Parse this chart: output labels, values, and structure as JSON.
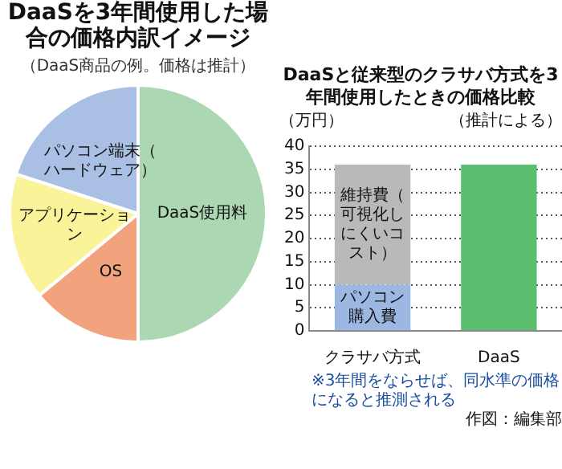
{
  "chart_data": [
    {
      "type": "pie",
      "title": "DaaSを3年間使用した場合の価格内訳イメージ",
      "subtitle": "（DaaS商品の例。価格は推計）",
      "categories": [
        "DaaS使用料",
        "OS",
        "アプリケーション",
        "パソコン端末（ハードウェア）"
      ],
      "values": [
        50,
        14,
        16,
        20
      ],
      "colors": [
        "#abd8b2",
        "#f2a27c",
        "#fbf39a",
        "#a9bfe3"
      ],
      "legend": false
    },
    {
      "type": "bar",
      "title": "DaaSと従来型のクラサバ方式を3年間使用したときの価格比較",
      "subtitle": "（推計による）",
      "ylabel": "（万円）",
      "categories": [
        "クラサバ方式",
        "DaaS"
      ],
      "stacked": true,
      "series": [
        {
          "name": "パソコン購入費",
          "color": "#9db7e3",
          "values": [
            10,
            null
          ]
        },
        {
          "name": "維持費（可視化しにくいコスト）",
          "color": "#b9b9b9",
          "values": [
            26,
            null
          ]
        },
        {
          "color": "#5cbf70",
          "values": [
            null,
            36
          ]
        }
      ],
      "ylim": [
        0,
        40
      ],
      "yticks": [
        0,
        5,
        10,
        15,
        20,
        25,
        30,
        35,
        40
      ],
      "grid": "y",
      "legend": false,
      "annotations": [
        "※3年間をならせば、同水準の価格になると推測される",
        "作図：編集部"
      ]
    }
  ]
}
